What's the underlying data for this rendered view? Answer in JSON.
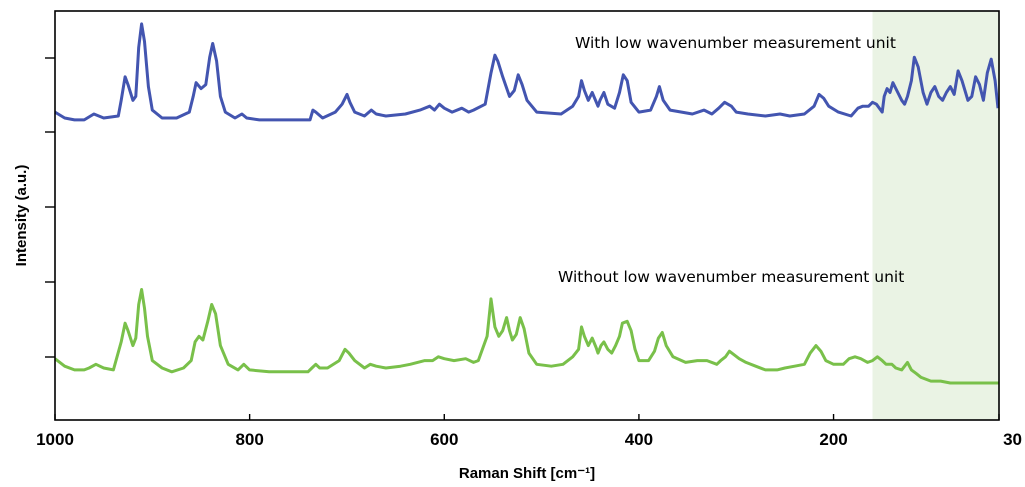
{
  "chart_data": {
    "type": "line",
    "title": "",
    "xlabel": "Raman Shift [cm⁻¹]",
    "ylabel": "Intensity (a.u.)",
    "xlim": [
      1000,
      30
    ],
    "x_reversed": true,
    "ylim": [
      0,
      100
    ],
    "x_ticks": [
      1000,
      800,
      600,
      400,
      200,
      30
    ],
    "y_tick_marks_unlabeled": true,
    "grid": false,
    "highlight_region": {
      "x_from": 160,
      "x_to": 30,
      "color": "#eaf3e4"
    },
    "series": [
      {
        "name": "With low wavenumber measurement unit",
        "color": "#4355b0",
        "points": [
          [
            1000,
            52
          ],
          [
            990,
            49
          ],
          [
            980,
            48
          ],
          [
            970,
            48
          ],
          [
            960,
            51
          ],
          [
            950,
            49
          ],
          [
            935,
            50
          ],
          [
            932,
            58
          ],
          [
            928,
            70
          ],
          [
            925,
            66
          ],
          [
            920,
            58
          ],
          [
            917,
            60
          ],
          [
            914,
            85
          ],
          [
            911,
            97
          ],
          [
            908,
            88
          ],
          [
            904,
            65
          ],
          [
            900,
            53
          ],
          [
            890,
            49
          ],
          [
            875,
            49
          ],
          [
            862,
            52
          ],
          [
            858,
            60
          ],
          [
            855,
            67
          ],
          [
            850,
            64
          ],
          [
            845,
            66
          ],
          [
            841,
            80
          ],
          [
            838,
            87
          ],
          [
            834,
            78
          ],
          [
            830,
            60
          ],
          [
            825,
            52
          ],
          [
            815,
            49
          ],
          [
            808,
            51
          ],
          [
            803,
            49
          ],
          [
            790,
            48
          ],
          [
            760,
            48
          ],
          [
            738,
            48
          ],
          [
            735,
            53
          ],
          [
            732,
            52
          ],
          [
            725,
            49
          ],
          [
            712,
            52
          ],
          [
            705,
            56
          ],
          [
            700,
            61
          ],
          [
            697,
            57
          ],
          [
            692,
            52
          ],
          [
            682,
            50
          ],
          [
            675,
            53
          ],
          [
            670,
            51
          ],
          [
            660,
            50
          ],
          [
            640,
            51
          ],
          [
            625,
            53
          ],
          [
            615,
            55
          ],
          [
            610,
            53
          ],
          [
            605,
            56
          ],
          [
            600,
            54
          ],
          [
            592,
            52
          ],
          [
            582,
            54
          ],
          [
            575,
            52
          ],
          [
            570,
            53
          ],
          [
            558,
            56
          ],
          [
            552,
            72
          ],
          [
            548,
            81
          ],
          [
            545,
            78
          ],
          [
            540,
            70
          ],
          [
            533,
            60
          ],
          [
            528,
            63
          ],
          [
            524,
            71
          ],
          [
            520,
            66
          ],
          [
            515,
            58
          ],
          [
            505,
            52
          ],
          [
            480,
            51
          ],
          [
            468,
            55
          ],
          [
            462,
            60
          ],
          [
            459,
            68
          ],
          [
            456,
            63
          ],
          [
            452,
            58
          ],
          [
            448,
            62
          ],
          [
            442,
            55
          ],
          [
            440,
            58
          ],
          [
            436,
            62
          ],
          [
            432,
            56
          ],
          [
            425,
            54
          ],
          [
            420,
            62
          ],
          [
            416,
            71
          ],
          [
            412,
            68
          ],
          [
            408,
            57
          ],
          [
            400,
            52
          ],
          [
            388,
            53
          ],
          [
            382,
            60
          ],
          [
            379,
            65
          ],
          [
            375,
            58
          ],
          [
            368,
            53
          ],
          [
            345,
            51
          ],
          [
            333,
            53
          ],
          [
            325,
            51
          ],
          [
            318,
            54
          ],
          [
            312,
            57
          ],
          [
            305,
            55
          ],
          [
            300,
            52
          ],
          [
            288,
            51
          ],
          [
            270,
            50
          ],
          [
            255,
            51
          ],
          [
            245,
            50
          ],
          [
            230,
            51
          ],
          [
            220,
            55
          ],
          [
            215,
            61
          ],
          [
            210,
            59
          ],
          [
            205,
            55
          ],
          [
            195,
            52
          ],
          [
            182,
            50
          ],
          [
            175,
            54
          ],
          [
            170,
            55
          ],
          [
            164,
            55
          ],
          [
            160,
            57
          ],
          [
            156,
            56
          ],
          [
            150,
            52
          ],
          [
            148,
            60
          ],
          [
            145,
            64
          ],
          [
            142,
            62
          ],
          [
            139,
            67
          ],
          [
            135,
            63
          ],
          [
            130,
            58
          ],
          [
            127,
            56
          ],
          [
            124,
            60
          ],
          [
            120,
            68
          ],
          [
            117,
            80
          ],
          [
            113,
            75
          ],
          [
            108,
            62
          ],
          [
            104,
            56
          ],
          [
            100,
            62
          ],
          [
            96,
            65
          ],
          [
            92,
            60
          ],
          [
            88,
            58
          ],
          [
            84,
            62
          ],
          [
            80,
            65
          ],
          [
            76,
            61
          ],
          [
            72,
            73
          ],
          [
            68,
            68
          ],
          [
            62,
            58
          ],
          [
            58,
            60
          ],
          [
            54,
            70
          ],
          [
            50,
            66
          ],
          [
            46,
            58
          ],
          [
            42,
            72
          ],
          [
            38,
            79
          ],
          [
            34,
            68
          ],
          [
            31,
            54
          ]
        ]
      },
      {
        "name": "Without low wavenumber measurement unit",
        "color": "#79c04a",
        "points": [
          [
            1000,
            13
          ],
          [
            990,
            9
          ],
          [
            980,
            7
          ],
          [
            970,
            7
          ],
          [
            965,
            8
          ],
          [
            958,
            10
          ],
          [
            950,
            8
          ],
          [
            940,
            7
          ],
          [
            932,
            22
          ],
          [
            928,
            32
          ],
          [
            925,
            28
          ],
          [
            920,
            20
          ],
          [
            917,
            24
          ],
          [
            914,
            42
          ],
          [
            911,
            50
          ],
          [
            908,
            40
          ],
          [
            905,
            25
          ],
          [
            900,
            12
          ],
          [
            890,
            8
          ],
          [
            880,
            6
          ],
          [
            868,
            8
          ],
          [
            860,
            12
          ],
          [
            856,
            22
          ],
          [
            852,
            25
          ],
          [
            848,
            23
          ],
          [
            843,
            33
          ],
          [
            839,
            42
          ],
          [
            835,
            37
          ],
          [
            830,
            20
          ],
          [
            822,
            10
          ],
          [
            812,
            7
          ],
          [
            806,
            10
          ],
          [
            800,
            7
          ],
          [
            780,
            6
          ],
          [
            760,
            6
          ],
          [
            740,
            6
          ],
          [
            736,
            8
          ],
          [
            732,
            10
          ],
          [
            728,
            8
          ],
          [
            720,
            8
          ],
          [
            708,
            12
          ],
          [
            702,
            18
          ],
          [
            698,
            16
          ],
          [
            692,
            12
          ],
          [
            682,
            8
          ],
          [
            676,
            10
          ],
          [
            670,
            9
          ],
          [
            660,
            8
          ],
          [
            645,
            9
          ],
          [
            635,
            10
          ],
          [
            620,
            12
          ],
          [
            612,
            12
          ],
          [
            606,
            14
          ],
          [
            600,
            13
          ],
          [
            590,
            12
          ],
          [
            578,
            13
          ],
          [
            570,
            11
          ],
          [
            565,
            12
          ],
          [
            556,
            25
          ],
          [
            552,
            45
          ],
          [
            548,
            30
          ],
          [
            544,
            25
          ],
          [
            540,
            28
          ],
          [
            536,
            35
          ],
          [
            533,
            28
          ],
          [
            530,
            23
          ],
          [
            526,
            26
          ],
          [
            522,
            35
          ],
          [
            518,
            29
          ],
          [
            513,
            16
          ],
          [
            505,
            10
          ],
          [
            490,
            9
          ],
          [
            478,
            10
          ],
          [
            468,
            14
          ],
          [
            462,
            18
          ],
          [
            459,
            30
          ],
          [
            456,
            25
          ],
          [
            452,
            20
          ],
          [
            448,
            24
          ],
          [
            444,
            19
          ],
          [
            442,
            16
          ],
          [
            439,
            20
          ],
          [
            436,
            22
          ],
          [
            432,
            18
          ],
          [
            428,
            16
          ],
          [
            424,
            20
          ],
          [
            420,
            25
          ],
          [
            417,
            32
          ],
          [
            412,
            33
          ],
          [
            408,
            28
          ],
          [
            404,
            18
          ],
          [
            400,
            12
          ],
          [
            390,
            12
          ],
          [
            384,
            17
          ],
          [
            380,
            24
          ],
          [
            376,
            27
          ],
          [
            372,
            20
          ],
          [
            365,
            14
          ],
          [
            352,
            11
          ],
          [
            340,
            12
          ],
          [
            330,
            12
          ],
          [
            320,
            10
          ],
          [
            316,
            12
          ],
          [
            311,
            14
          ],
          [
            307,
            17
          ],
          [
            302,
            15
          ],
          [
            297,
            13
          ],
          [
            290,
            11
          ],
          [
            280,
            9
          ],
          [
            270,
            7
          ],
          [
            258,
            7
          ],
          [
            250,
            8
          ],
          [
            240,
            9
          ],
          [
            230,
            10
          ],
          [
            224,
            16
          ],
          [
            218,
            20
          ],
          [
            213,
            17
          ],
          [
            208,
            12
          ],
          [
            200,
            10
          ],
          [
            190,
            10
          ],
          [
            184,
            13
          ],
          [
            178,
            14
          ],
          [
            172,
            13
          ],
          [
            165,
            11
          ],
          [
            160,
            12
          ],
          [
            155,
            14
          ],
          [
            150,
            12
          ],
          [
            146,
            10
          ],
          [
            140,
            10
          ],
          [
            136,
            8
          ],
          [
            130,
            7
          ],
          [
            127,
            9
          ],
          [
            124,
            11
          ],
          [
            120,
            7
          ],
          [
            115,
            5
          ],
          [
            110,
            3
          ],
          [
            100,
            1
          ],
          [
            90,
            1
          ],
          [
            80,
            0
          ],
          [
            60,
            0
          ],
          [
            40,
            0
          ],
          [
            30,
            0
          ]
        ]
      }
    ],
    "annotations": [
      {
        "text": "With low wavenumber measurement unit",
        "near_series": 0
      },
      {
        "text": "Without low wavenumber measurement unit",
        "near_series": 1
      }
    ]
  }
}
